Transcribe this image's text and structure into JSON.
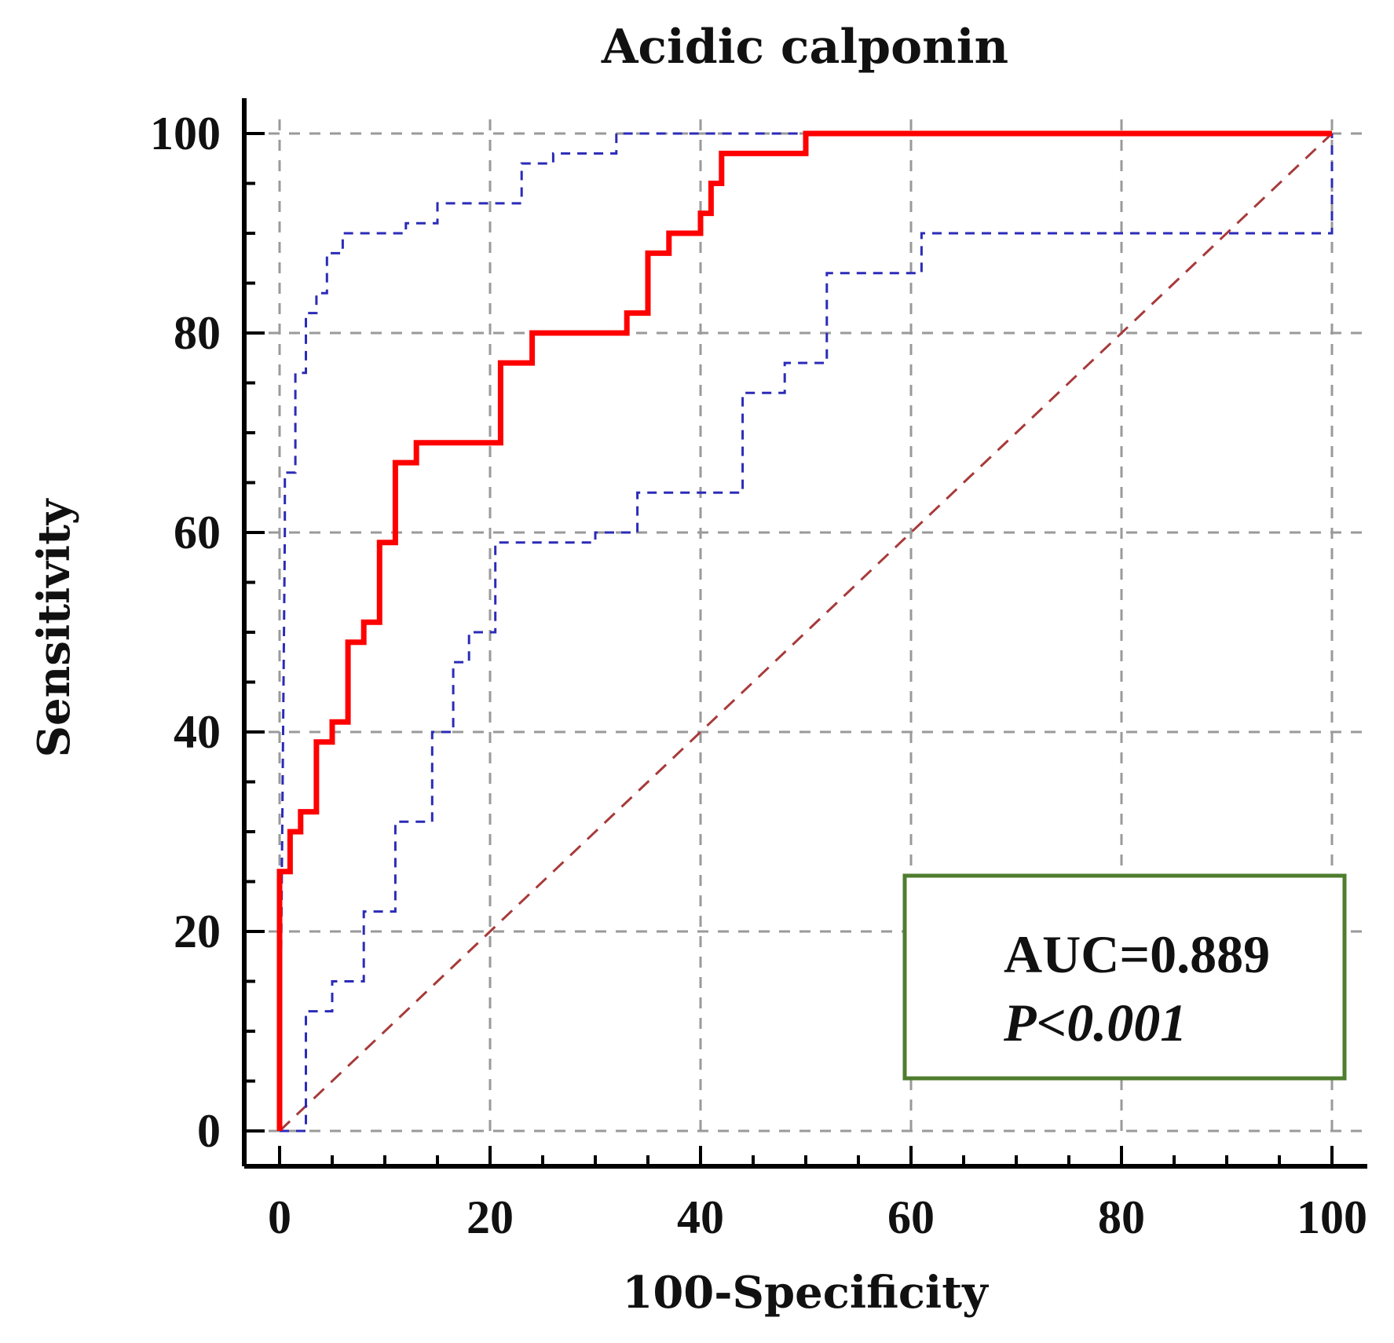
{
  "chart_data": {
    "type": "line",
    "title": "Acidic calponin",
    "xlabel": "100-Specificity",
    "ylabel": "Sensitivity",
    "xlim": [
      0,
      100
    ],
    "ylim": [
      0,
      100
    ],
    "xticks": [
      0,
      20,
      40,
      60,
      80,
      100
    ],
    "yticks": [
      0,
      20,
      40,
      60,
      80,
      100
    ],
    "grid": true,
    "annotation": {
      "auc": "AUC=0.889",
      "p": "P<0.001"
    },
    "colors": {
      "roc": "#ff0000",
      "ci": "#2b2bb8",
      "reference": "#a83a3a",
      "box": "#4e7d2e"
    },
    "series": [
      {
        "role": "roc",
        "x": [
          0,
          0,
          1,
          1,
          2,
          2,
          3.5,
          3.5,
          5,
          5,
          6.5,
          6.5,
          8,
          8,
          9.5,
          9.5,
          11,
          11,
          13,
          13,
          21,
          21,
          24,
          24,
          33,
          33,
          35,
          35,
          37,
          37,
          40,
          40,
          41,
          41,
          42,
          42,
          50,
          50,
          60,
          80,
          100
        ],
        "y": [
          0,
          26,
          26,
          30,
          30,
          32,
          32,
          39,
          39,
          41,
          41,
          49,
          49,
          51,
          51,
          59,
          59,
          67,
          67,
          69,
          69,
          77,
          77,
          80,
          80,
          82,
          82,
          88,
          88,
          90,
          90,
          92,
          92,
          95,
          95,
          98,
          98,
          100,
          100,
          100,
          100
        ]
      },
      {
        "role": "ci-upper",
        "x": [
          0,
          0.5,
          0.5,
          1.5,
          1.5,
          2.5,
          2.5,
          3.5,
          3.5,
          4.5,
          4.5,
          6,
          6,
          12,
          12,
          15,
          15,
          23,
          23,
          26,
          26,
          32,
          32,
          40,
          50,
          100
        ],
        "y": [
          0,
          60,
          66,
          66,
          76,
          76,
          82,
          82,
          84,
          84,
          88,
          88,
          90,
          90,
          91,
          91,
          93,
          93,
          97,
          97,
          98,
          98,
          100,
          100,
          100,
          100
        ]
      },
      {
        "role": "ci-lower",
        "x": [
          0,
          2.5,
          2.5,
          5,
          5,
          8,
          8,
          11,
          11,
          14.5,
          14.5,
          16.5,
          16.5,
          18,
          18,
          20.5,
          20.5,
          30,
          30,
          34,
          34,
          44,
          44,
          48,
          48,
          52,
          52,
          61,
          61,
          90,
          100,
          100
        ],
        "y": [
          0,
          0,
          12,
          12,
          15,
          15,
          22,
          22,
          31,
          31,
          40,
          40,
          47,
          47,
          50,
          50,
          59,
          59,
          60,
          60,
          64,
          64,
          74,
          74,
          77,
          77,
          86,
          86,
          90,
          90,
          90,
          100
        ]
      },
      {
        "role": "reference",
        "x": [
          0,
          100
        ],
        "y": [
          0,
          100
        ]
      }
    ]
  }
}
